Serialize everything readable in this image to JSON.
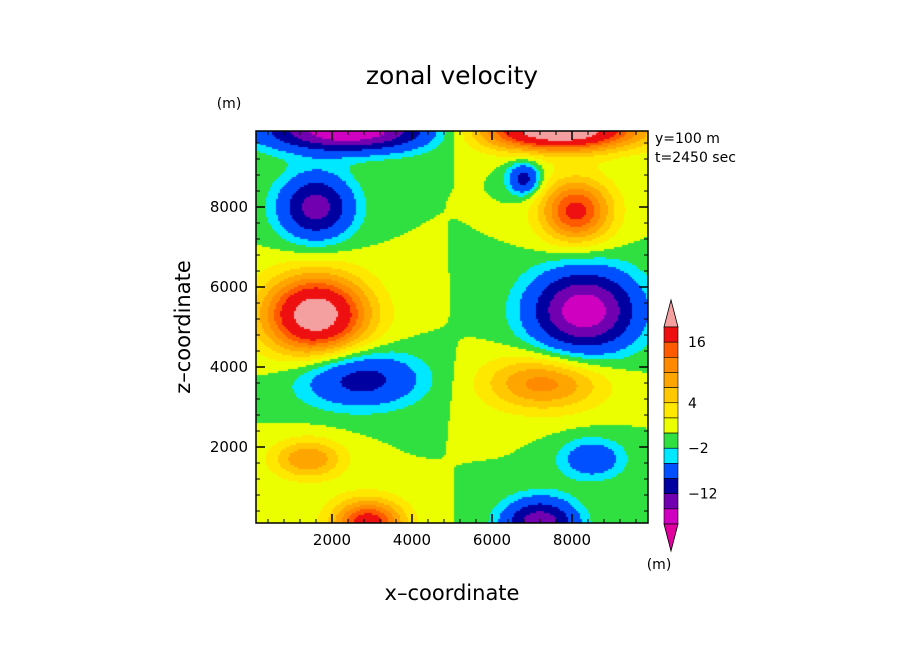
{
  "chart_data": {
    "type": "heatmap",
    "title": "zonal velocity",
    "xlabel": "x–coordinate",
    "ylabel": "z–coordinate",
    "x_unit": "(m)",
    "y_unit": "(m)",
    "annotation": [
      "y=100 m",
      "t=2450 sec"
    ],
    "xlim": [
      100,
      9900
    ],
    "ylim": [
      100,
      9900
    ],
    "x_ticks": [
      2000,
      4000,
      6000,
      8000
    ],
    "y_ticks": [
      2000,
      4000,
      6000,
      8000
    ],
    "x_tick_labels": [
      "2000",
      "4000",
      "6000",
      "8000"
    ],
    "y_tick_labels": [
      "2000",
      "4000",
      "6000",
      "8000"
    ],
    "colorbar": {
      "unit": "(m)",
      "labels": [
        {
          "level": 16,
          "text": "16"
        },
        {
          "level": 4,
          "text": "4"
        },
        {
          "level": -2,
          "text": "−2"
        },
        {
          "level": -12,
          "text": "−12"
        }
      ],
      "bands": [
        {
          "max": 20,
          "color": "#f4a0a0"
        },
        {
          "max": 16,
          "color": "#ee1010"
        },
        {
          "max": 12,
          "color": "#ff5a00"
        },
        {
          "max": 10,
          "color": "#ff8a00"
        },
        {
          "max": 8,
          "color": "#ffa500"
        },
        {
          "max": 6,
          "color": "#ffc800"
        },
        {
          "max": 4,
          "color": "#ffe800"
        },
        {
          "max": 2,
          "color": "#ecff00"
        },
        {
          "max": 0,
          "color": "#30e040"
        },
        {
          "max": -2,
          "color": "#00e8ff"
        },
        {
          "max": -4,
          "color": "#0050ff"
        },
        {
          "max": -8,
          "color": "#0000a0"
        },
        {
          "max": -12,
          "color": "#7000b0"
        },
        {
          "max": -16,
          "color": "#d000c0"
        },
        {
          "max": -20,
          "color": "#e000a0"
        }
      ]
    },
    "features": [
      {
        "x": 1600,
        "z": 5300,
        "u": 19,
        "sx": 1300,
        "sz": 1000
      },
      {
        "x": 8300,
        "z": 5400,
        "u": -19,
        "sx": 1300,
        "sz": 1000
      },
      {
        "x": 1600,
        "z": 8000,
        "u": -14,
        "sx": 900,
        "sz": 800
      },
      {
        "x": 8100,
        "z": 7900,
        "u": 13,
        "sx": 900,
        "sz": 800
      },
      {
        "x": 2400,
        "z": 9900,
        "u": -20,
        "sx": 2000,
        "sz": 500
      },
      {
        "x": 7700,
        "z": 9900,
        "u": 20,
        "sx": 2000,
        "sz": 500
      },
      {
        "x": 2700,
        "z": 3700,
        "u": -10,
        "sx": 1500,
        "sz": 700
      },
      {
        "x": 7300,
        "z": 3600,
        "u": 9,
        "sx": 1500,
        "sz": 700
      },
      {
        "x": 1400,
        "z": 1700,
        "u": 8,
        "sx": 900,
        "sz": 500
      },
      {
        "x": 8500,
        "z": 1700,
        "u": -7,
        "sx": 800,
        "sz": 500
      },
      {
        "x": 2900,
        "z": 100,
        "u": 14,
        "sx": 900,
        "sz": 600
      },
      {
        "x": 7200,
        "z": 100,
        "u": -15,
        "sx": 900,
        "sz": 600
      },
      {
        "x": 6800,
        "z": 8700,
        "u": -10,
        "sx": 400,
        "sz": 400
      }
    ]
  }
}
